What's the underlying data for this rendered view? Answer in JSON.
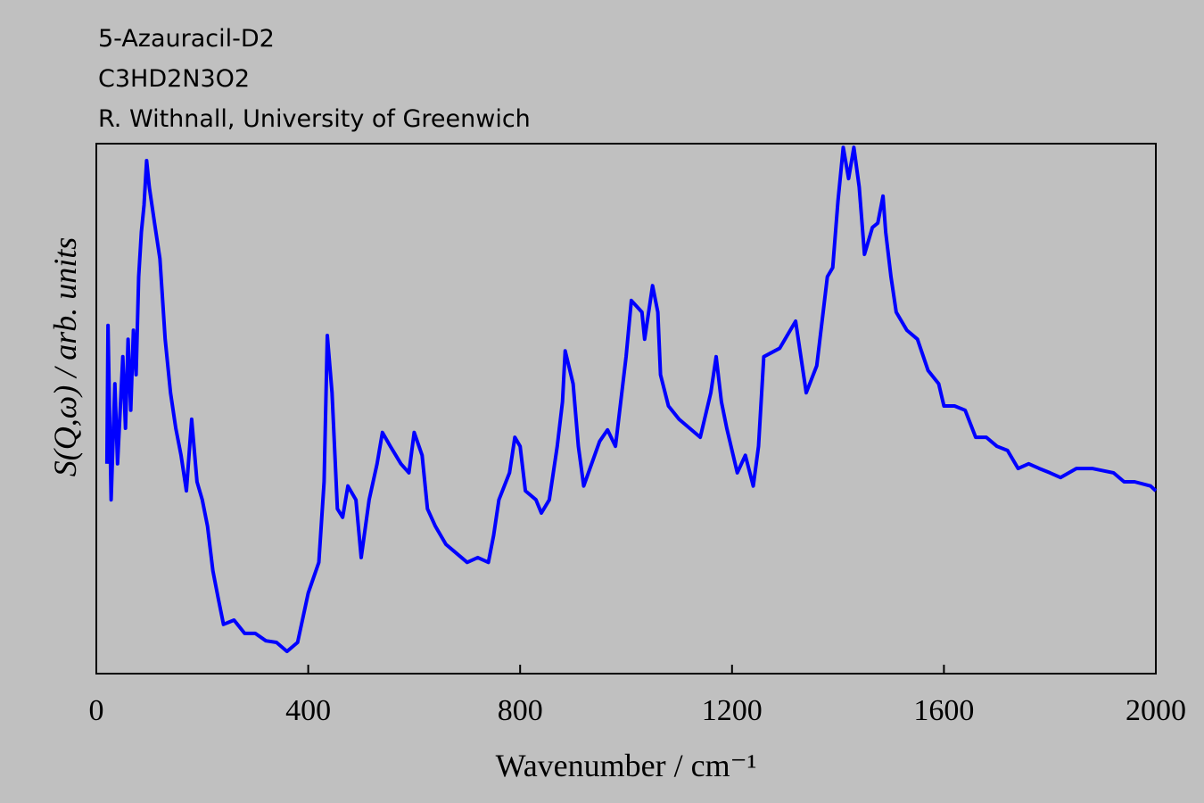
{
  "chart_data": {
    "type": "line",
    "texts": [
      "5-Azauracil-D2",
      "C3HD2N3O2",
      "R. Withnall, University of Greenwich"
    ],
    "xlabel": "Wavenumber / cm⁻¹",
    "ylabel": "S(Q,ω) / arb. units",
    "xlim": [
      0,
      2000
    ],
    "ylim": [
      0,
      100
    ],
    "xticks": [
      0,
      400,
      800,
      1200,
      1600,
      2000
    ],
    "series": [
      {
        "name": "5-Azauracil-D2",
        "color": "#0000ff",
        "x": [
          20,
          22,
          28,
          35,
          40,
          50,
          55,
          60,
          65,
          70,
          75,
          80,
          85,
          90,
          95,
          100,
          110,
          120,
          130,
          140,
          150,
          160,
          170,
          180,
          190,
          200,
          210,
          220,
          230,
          240,
          260,
          280,
          300,
          320,
          340,
          360,
          380,
          400,
          420,
          430,
          436,
          445,
          455,
          465,
          475,
          490,
          500,
          515,
          530,
          540,
          555,
          575,
          590,
          600,
          615,
          625,
          640,
          660,
          680,
          700,
          720,
          740,
          750,
          760,
          780,
          790,
          800,
          810,
          830,
          840,
          855,
          870,
          880,
          885,
          900,
          910,
          920,
          950,
          965,
          980,
          1000,
          1010,
          1030,
          1035,
          1050,
          1060,
          1065,
          1080,
          1100,
          1120,
          1140,
          1160,
          1170,
          1180,
          1190,
          1210,
          1225,
          1240,
          1250,
          1260,
          1290,
          1310,
          1320,
          1330,
          1340,
          1360,
          1380,
          1390,
          1400,
          1410,
          1420,
          1430,
          1440,
          1450,
          1465,
          1475,
          1485,
          1490,
          1500,
          1510,
          1530,
          1550,
          1570,
          1590,
          1600,
          1620,
          1640,
          1660,
          1680,
          1700,
          1720,
          1740,
          1760,
          1780,
          1800,
          1820,
          1850,
          1880,
          1920,
          1940,
          1960,
          1990,
          2000
        ],
        "values": [
          39.6,
          65.7,
          32.8,
          54.7,
          39.6,
          59.8,
          46.3,
          63.1,
          49.7,
          64.8,
          56.4,
          74.9,
          83.3,
          88.4,
          96.8,
          91.8,
          85.0,
          78.3,
          63.1,
          53.0,
          46.3,
          41.2,
          34.5,
          48.0,
          36.2,
          32.8,
          27.8,
          19.4,
          14.3,
          9.3,
          10.1,
          7.6,
          7.6,
          6.2,
          5.9,
          4.2,
          5.9,
          15.2,
          21.0,
          36.2,
          63.8,
          53.0,
          31.1,
          29.5,
          35.4,
          32.8,
          21.9,
          32.8,
          39.6,
          45.5,
          42.9,
          39.6,
          37.9,
          45.5,
          41.2,
          31.1,
          27.8,
          24.4,
          22.7,
          21.0,
          21.9,
          21.0,
          26.1,
          32.8,
          37.9,
          44.6,
          42.9,
          34.5,
          32.8,
          30.3,
          32.8,
          42.9,
          51.3,
          60.9,
          54.7,
          42.9,
          35.4,
          43.8,
          46.0,
          42.9,
          59.8,
          70.4,
          68.2,
          63.1,
          73.2,
          68.2,
          56.4,
          50.5,
          48.0,
          46.3,
          44.6,
          53.0,
          59.8,
          51.3,
          46.3,
          37.9,
          41.2,
          35.4,
          42.9,
          59.8,
          61.4,
          64.8,
          66.5,
          59.8,
          53.0,
          58.1,
          74.9,
          76.6,
          89.2,
          99.3,
          93.4,
          99.3,
          91.8,
          79.1,
          84.2,
          85.0,
          90.1,
          83.3,
          74.9,
          68.2,
          64.8,
          63.1,
          57.2,
          54.7,
          50.5,
          50.5,
          49.7,
          44.6,
          44.6,
          42.9,
          42.1,
          38.7,
          39.6,
          38.7,
          37.9,
          37.0,
          38.7,
          38.7,
          37.9,
          36.2,
          36.2,
          35.4,
          34.5
        ]
      }
    ]
  }
}
